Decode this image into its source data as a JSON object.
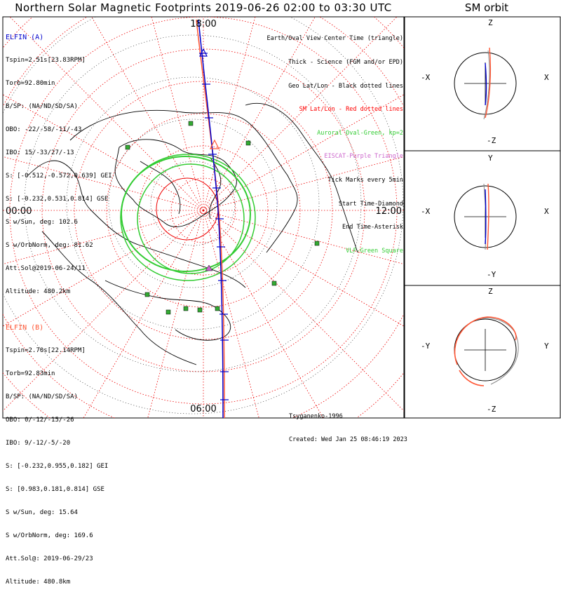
{
  "title": "Northern Solar Magnetic Footprints 2019-06-26 02:00 to 03:30 UTC",
  "orbit_title": "SM orbit",
  "map": {
    "labels": {
      "top": "18:00",
      "bottom": "06:00",
      "left": "00:00",
      "right": "12:00"
    }
  },
  "elfin_a": {
    "header": "ELFIN (A)",
    "color": "#0000cc",
    "lines": [
      "Tspin=2.51s[23.83RPM]",
      "Torb=92.80min",
      "B/SP: (NA/ND/SD/SA)",
      "OBO: -22/-58/-11/-43",
      "IBO: 15/-33/27/-13",
      "S: [-0.512,-0.572,0.639] GEI",
      "S: [-0.232,0.531,0.814] GSE",
      "S w/Sun, deg: 102.6",
      "S w/OrbNorm, deg: 81.62",
      "Att.Sol@2019-06-24/11",
      "Altitude: 480.2km"
    ]
  },
  "elfin_b": {
    "header": "ELFIN (B)",
    "color": "#ff5533",
    "lines": [
      "Tspin=2.70s[22.14RPM]",
      "Torb=92.83min",
      "B/SP: (NA/ND/SD/SA)",
      "OBO: 0/-12/-15/-26",
      "IBO: 9/-12/-5/-20",
      "S: [-0.232,0.955,0.182] GEI",
      "S: [0.983,0.181,0.814] GSE",
      "S w/Sun, deg: 15.64",
      "S w/OrbNorm, deg: 169.6",
      "Att.Sol@: 2019-06-29/23",
      "Altitude: 480.8km"
    ]
  },
  "legend": [
    {
      "text": "Earth/Oval View Center Time (triangle)",
      "color": "#000000"
    },
    {
      "text": "Thick - Science (FGM and/or EPD)",
      "color": "#000000"
    },
    {
      "text": "Geo Lat/Lon - Black dotted lines",
      "color": "#000000"
    },
    {
      "text": "SM Lat/Lon - Red dotted lines",
      "color": "#ff0000"
    },
    {
      "text": "Auroral Oval-Green, kp=2",
      "color": "#33cc33"
    },
    {
      "text": "EISCAT-Purple Triangle",
      "color": "#cc66cc"
    },
    {
      "text": "Tick Marks every 5min",
      "color": "#000000"
    },
    {
      "text": "Start Time-Diamond",
      "color": "#000000"
    },
    {
      "text": "End Time-Asterisk",
      "color": "#000000"
    },
    {
      "text": "VLF-Green Square",
      "color": "#33cc33"
    }
  ],
  "credit": {
    "line1": "Tsyganenko-1996",
    "line2": "Created: Wed Jan 25 08:46:19 2023"
  },
  "orbit_panels": [
    {
      "top": "Z",
      "bottom": "-Z",
      "left": "-X",
      "right": "X"
    },
    {
      "top": "Y",
      "bottom": "-Y",
      "left": "-X",
      "right": "X"
    },
    {
      "top": "Z",
      "bottom": "-Z",
      "left": "-Y",
      "right": "Y"
    }
  ]
}
